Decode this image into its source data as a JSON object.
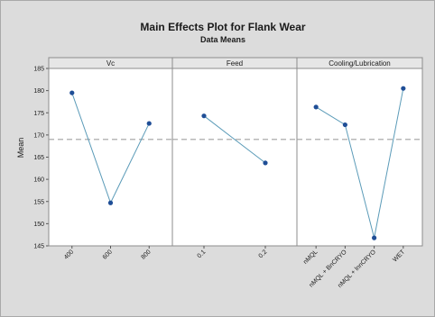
{
  "chart_data": {
    "type": "line",
    "title": "Main Effects Plot for Flank Wear",
    "subtitle": "Data Means",
    "ylabel": "Mean",
    "ylim": [
      145,
      185
    ],
    "yticks": [
      145,
      150,
      155,
      160,
      165,
      170,
      175,
      180,
      185
    ],
    "reference_line": 169,
    "colors": {
      "line": "#5b9bb8",
      "marker": "#1f4e96",
      "reference": "#a0a0a0",
      "panel_header": "#e6e6e6"
    },
    "panels": [
      {
        "name": "Vc",
        "categories": [
          "400",
          "600",
          "800"
        ],
        "values": [
          179.5,
          154.7,
          172.6
        ]
      },
      {
        "name": "Feed",
        "categories": [
          "0.1",
          "0.2"
        ],
        "values": [
          174.3,
          163.7
        ]
      },
      {
        "name": "Cooling/Lubrication",
        "categories": [
          "nMQL",
          "nMQL + BnCRYO",
          "nMQL + lnnCRYO",
          "WET"
        ],
        "values": [
          176.3,
          172.3,
          146.8,
          180.5
        ]
      }
    ]
  }
}
